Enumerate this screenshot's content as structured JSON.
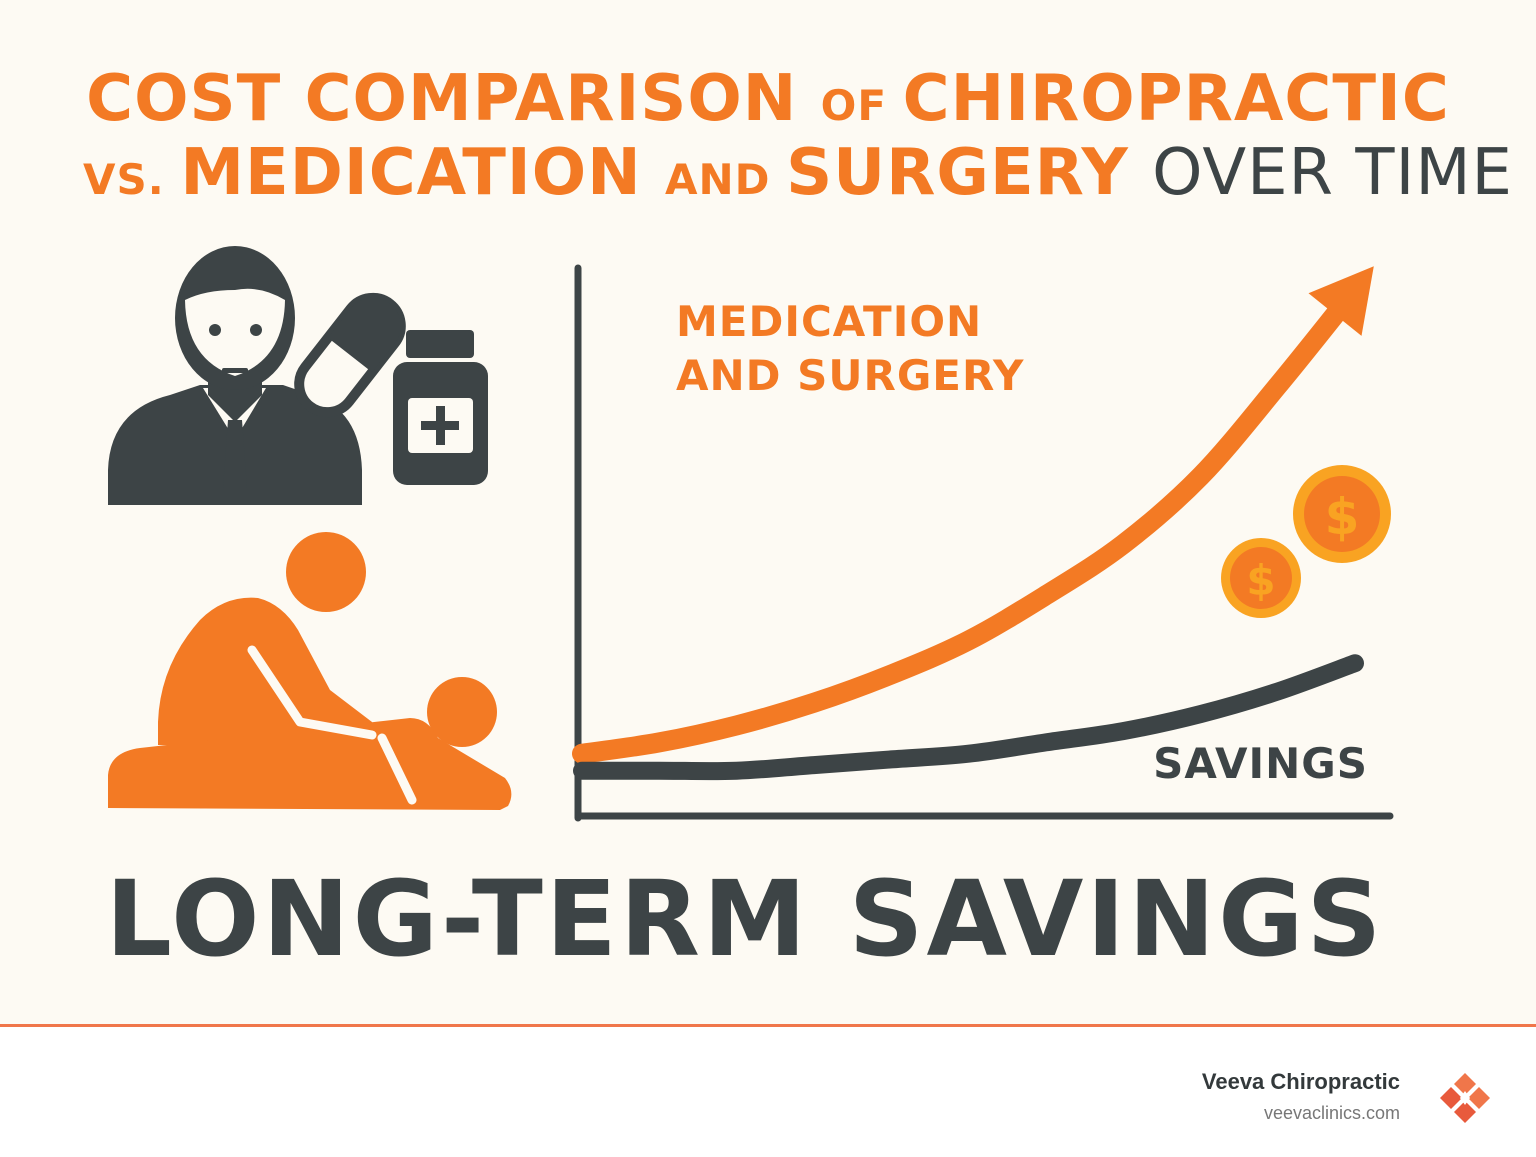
{
  "title": {
    "line1": [
      {
        "text": "COST COMPARISON ",
        "style": "orange"
      },
      {
        "text": "OF ",
        "style": "orange sm"
      },
      {
        "text": "CHIROPRACTIC",
        "style": "orange"
      }
    ],
    "line2": [
      {
        "text": "VS. ",
        "style": "orange sm"
      },
      {
        "text": "MEDICATION ",
        "style": "orange"
      },
      {
        "text": "AND ",
        "style": "orange sm"
      },
      {
        "text": "SURGERY ",
        "style": "orange"
      },
      {
        "text": "OVER TIME",
        "style": "dark"
      }
    ]
  },
  "icons": [
    "businessman-icon",
    "pill-capsule-icon",
    "medicine-bottle-icon",
    "chiropractor-treatment-icon",
    "dollar-coin-icon"
  ],
  "chart_data": {
    "type": "line",
    "title": "",
    "xlabel": "",
    "ylabel": "",
    "grid": false,
    "series": [
      {
        "name": "MEDICATION AND SURGERY",
        "label_lines": [
          "MEDICATION",
          "AND SURGERY"
        ],
        "color": "#f37a24",
        "x": [
          0,
          0.1,
          0.2,
          0.3,
          0.4,
          0.5,
          0.6,
          0.7,
          0.8,
          0.9,
          1.0
        ],
        "values": [
          0.11,
          0.13,
          0.16,
          0.2,
          0.25,
          0.31,
          0.39,
          0.48,
          0.6,
          0.76,
          0.93
        ],
        "arrow": true
      },
      {
        "name": "SAVINGS",
        "color": "#3d4446",
        "x": [
          0,
          0.1,
          0.2,
          0.3,
          0.4,
          0.5,
          0.6,
          0.7,
          0.8,
          0.9,
          1.0
        ],
        "values": [
          0.08,
          0.08,
          0.08,
          0.09,
          0.1,
          0.11,
          0.13,
          0.15,
          0.18,
          0.22,
          0.27
        ]
      }
    ],
    "xlim": [
      0,
      1
    ],
    "ylim": [
      0,
      1
    ],
    "colors": {
      "accent": "#f37a24",
      "dark": "#3d4446",
      "coin": "#f9a322"
    }
  },
  "headline": "LONG-TERM SAVINGS",
  "footer": {
    "brand": "Veeva Chiropractic",
    "url": "veevaclinics.com",
    "logo_icon": "diamond-logo-icon"
  }
}
